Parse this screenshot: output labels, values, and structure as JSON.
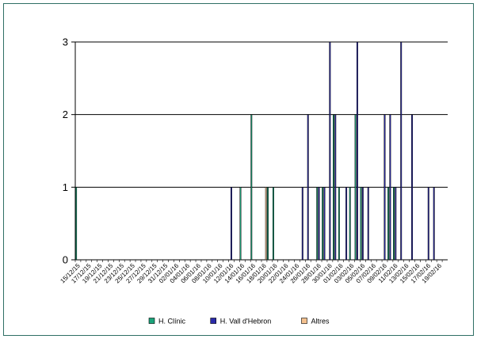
{
  "chart_data": {
    "type": "bar",
    "title": "",
    "xlabel": "",
    "ylabel": "",
    "ylim": [
      0,
      3
    ],
    "yticks": [
      0,
      1,
      2,
      3
    ],
    "grid": true,
    "legend_position": "bottom",
    "x_tick_labels": [
      "15/12/15",
      "17/12/15",
      "19/12/15",
      "21/12/15",
      "23/12/15",
      "25/12/15",
      "27/12/15",
      "29/12/15",
      "31/12/15",
      "02/01/16",
      "04/01/16",
      "06/01/16",
      "08/01/16",
      "10/01/16",
      "12/01/16",
      "14/01/16",
      "16/01/16",
      "18/01/16",
      "20/01/16",
      "22/01/16",
      "24/01/16",
      "26/01/16",
      "28/01/16",
      "30/01/16",
      "01/02/16",
      "03/02/16",
      "05/02/16",
      "07/02/16",
      "09/02/16",
      "11/02/16",
      "13/02/16",
      "15/02/16",
      "17/02/16",
      "19/02/16"
    ],
    "categories": [
      "15/12/15",
      "16/12/15",
      "17/12/15",
      "18/12/15",
      "19/12/15",
      "20/12/15",
      "21/12/15",
      "22/12/15",
      "23/12/15",
      "24/12/15",
      "25/12/15",
      "26/12/15",
      "27/12/15",
      "28/12/15",
      "29/12/15",
      "30/12/15",
      "31/12/15",
      "01/01/16",
      "02/01/16",
      "03/01/16",
      "04/01/16",
      "05/01/16",
      "06/01/16",
      "07/01/16",
      "08/01/16",
      "09/01/16",
      "10/01/16",
      "11/01/16",
      "12/01/16",
      "13/01/16",
      "14/01/16",
      "15/01/16",
      "16/01/16",
      "17/01/16",
      "18/01/16",
      "19/01/16",
      "20/01/16",
      "21/01/16",
      "22/01/16",
      "23/01/16",
      "24/01/16",
      "25/01/16",
      "26/01/16",
      "27/01/16",
      "28/01/16",
      "29/01/16",
      "30/01/16",
      "31/01/16",
      "01/02/16",
      "02/02/16",
      "03/02/16",
      "04/02/16",
      "05/02/16",
      "06/02/16",
      "07/02/16",
      "08/02/16",
      "09/02/16",
      "10/02/16",
      "11/02/16",
      "12/02/16",
      "13/02/16",
      "14/02/16",
      "15/02/16",
      "16/02/16",
      "17/02/16",
      "18/02/16",
      "19/02/16",
      "20/02/16"
    ],
    "series": [
      {
        "name": "H. Clínic",
        "color": "#1aa37a",
        "values": [
          1,
          0,
          0,
          0,
          0,
          0,
          0,
          0,
          0,
          0,
          0,
          0,
          0,
          0,
          0,
          0,
          0,
          0,
          0,
          0,
          0,
          0,
          0,
          0,
          0,
          0,
          0,
          0,
          0,
          0,
          1,
          0,
          2,
          0,
          0,
          1,
          1,
          0,
          0,
          0,
          0,
          0,
          0,
          0,
          1,
          1,
          0,
          2,
          1,
          0,
          1,
          2,
          1,
          0,
          0,
          0,
          0,
          1,
          1,
          0,
          0,
          0,
          0,
          0,
          0,
          0,
          0,
          0
        ]
      },
      {
        "name": "H. Vall d'Hebron",
        "color": "#2a2aa8",
        "values": [
          0,
          0,
          0,
          0,
          0,
          0,
          0,
          0,
          0,
          0,
          0,
          0,
          0,
          0,
          0,
          0,
          0,
          0,
          0,
          0,
          0,
          0,
          0,
          0,
          0,
          0,
          0,
          0,
          1,
          0,
          0,
          0,
          0,
          0,
          0,
          0,
          0,
          0,
          0,
          0,
          0,
          1,
          2,
          0,
          1,
          1,
          3,
          2,
          0,
          1,
          0,
          3,
          1,
          1,
          0,
          0,
          2,
          2,
          1,
          3,
          0,
          2,
          0,
          0,
          1,
          1,
          0,
          0
        ]
      },
      {
        "name": "Altres",
        "color": "#f3c08e",
        "values": [
          0,
          0,
          0,
          0,
          0,
          0,
          0,
          0,
          0,
          0,
          0,
          0,
          0,
          0,
          0,
          0,
          0,
          0,
          0,
          0,
          0,
          0,
          0,
          0,
          0,
          0,
          0,
          0,
          0,
          0,
          0,
          0,
          0,
          0,
          1,
          0,
          0,
          0,
          0,
          0,
          0,
          0,
          0,
          0,
          0,
          0,
          0,
          0,
          0,
          0,
          0,
          0,
          0,
          0,
          0,
          0,
          0,
          0,
          0,
          0,
          0,
          0,
          0,
          0,
          0,
          0,
          0,
          0
        ]
      }
    ]
  }
}
